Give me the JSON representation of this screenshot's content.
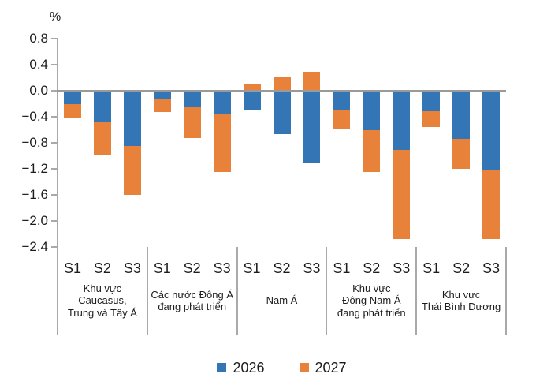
{
  "chart_data": {
    "type": "bar",
    "stacked": true,
    "orientation": "vertical",
    "unit_label": "%",
    "grid": false,
    "legend_position": "bottom",
    "ylim": [
      -2.4,
      0.8
    ],
    "y_ticks": [
      {
        "label": "0.8",
        "value": 0.8
      },
      {
        "label": "0.4",
        "value": 0.4
      },
      {
        "label": "0.0",
        "value": 0.0
      },
      {
        "label": "−0.4",
        "value": -0.4
      },
      {
        "label": "−0.8",
        "value": -0.8
      },
      {
        "label": "−1.2",
        "value": -1.2
      },
      {
        "label": "−1.6",
        "value": -1.6
      },
      {
        "label": "−2.0",
        "value": -2.0
      },
      {
        "label": "−2.4",
        "value": -2.4
      }
    ],
    "subcategories": [
      "S1",
      "S2",
      "S3"
    ],
    "groups": [
      {
        "label": "Khu vực Caucasus, Trung và Tây Á",
        "label_lines": [
          "Khu vực",
          "Caucasus,",
          "Trung và Tây Á"
        ]
      },
      {
        "label": "Các nước Đông Á đang phát triển",
        "label_lines": [
          "Các nước Đông Á",
          "đang phát triển"
        ]
      },
      {
        "label": "Nam Á",
        "label_lines": [
          "Nam Á"
        ]
      },
      {
        "label": "Khu vực Đông Nam Á đang phát triển",
        "label_lines": [
          "Khu vực",
          "Đông Nam Á",
          "đang phát triển"
        ]
      },
      {
        "label": "Khu vực Thái Bình Dương",
        "label_lines": [
          "Khu vực",
          "Thái Bình Dương"
        ]
      }
    ],
    "series": [
      {
        "name": "2026",
        "color": "#3375B5",
        "values_by_group": [
          [
            -0.21,
            -0.48,
            -0.85
          ],
          [
            -0.13,
            -0.25,
            -0.35
          ],
          [
            -0.3,
            -0.67,
            -1.12
          ],
          [
            -0.3,
            -0.6,
            -0.91
          ],
          [
            -0.32,
            -0.74,
            -1.21
          ]
        ]
      },
      {
        "name": "2027",
        "color": "#E8823A",
        "values_by_group": [
          [
            -0.22,
            -0.52,
            -0.75
          ],
          [
            -0.2,
            -0.48,
            -0.9
          ],
          [
            0.1,
            0.22,
            0.29
          ],
          [
            -0.29,
            -0.65,
            -1.37
          ],
          [
            -0.24,
            -0.46,
            -1.07
          ]
        ]
      }
    ]
  }
}
